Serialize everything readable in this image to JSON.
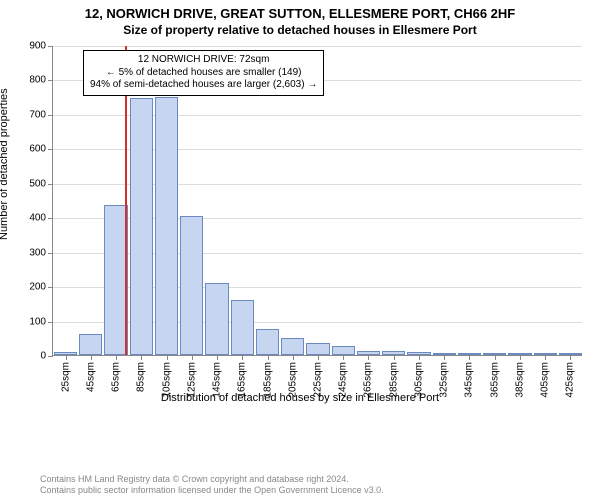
{
  "title": "12, NORWICH DRIVE, GREAT SUTTON, ELLESMERE PORT, CH66 2HF",
  "subtitle": "Size of property relative to detached houses in Ellesmere Port",
  "chart": {
    "type": "histogram",
    "y_label": "Number of detached properties",
    "x_label": "Distribution of detached houses by size in Ellesmere Port",
    "ylim": [
      0,
      900
    ],
    "ytick_step": 100,
    "yticks": [
      0,
      100,
      200,
      300,
      400,
      500,
      600,
      700,
      800,
      900
    ],
    "x_categories": [
      "25sqm",
      "45sqm",
      "65sqm",
      "85sqm",
      "105sqm",
      "125sqm",
      "145sqm",
      "165sqm",
      "185sqm",
      "205sqm",
      "225sqm",
      "245sqm",
      "265sqm",
      "285sqm",
      "305sqm",
      "325sqm",
      "345sqm",
      "365sqm",
      "385sqm",
      "405sqm",
      "425sqm"
    ],
    "x_values_start": 25,
    "x_values_step": 20,
    "values": [
      10,
      60,
      435,
      745,
      750,
      405,
      210,
      160,
      75,
      50,
      35,
      25,
      12,
      12,
      8,
      6,
      5,
      4,
      3,
      3,
      2
    ],
    "bar_fill": "#c7d6f0",
    "bar_stroke": "#6c89c0",
    "marker_x_value": 72,
    "marker_color": "#d82c2c",
    "grid_color": "#dddddd",
    "axis_color": "#888888",
    "background_color": "#ffffff",
    "tick_fontsize": 10,
    "label_fontsize": 11,
    "title_fontsize": 13
  },
  "infobox": {
    "line1": "12 NORWICH DRIVE: 72sqm",
    "line2": "← 5% of detached houses are smaller (149)",
    "line3": "94% of semi-detached houses are larger (2,603) →"
  },
  "footer": {
    "line1": "Contains HM Land Registry data © Crown copyright and database right 2024.",
    "line2": "Contains public sector information licensed under the Open Government Licence v3.0."
  }
}
